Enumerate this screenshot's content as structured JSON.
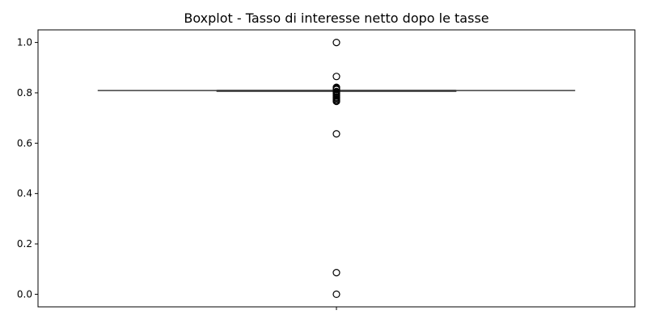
{
  "chart_data": {
    "type": "boxplot",
    "title": "Boxplot - Tasso di interesse netto dopo le tasse",
    "xlabel": "",
    "ylabel": "",
    "ylim": [
      -0.05,
      1.05
    ],
    "yticks": [
      0.0,
      0.2,
      0.4,
      0.6,
      0.8,
      1.0
    ],
    "ytick_labels": [
      "0.0",
      "0.2",
      "0.4",
      "0.6",
      "0.8",
      "1.0"
    ],
    "grid": false,
    "box": {
      "q1": 0.8088,
      "median": 0.809,
      "q3": 0.8092,
      "whisker_low": 0.8085,
      "whisker_high": 0.8095,
      "outliers": [
        1.0,
        0.865,
        0.822,
        0.819,
        0.816,
        0.813,
        0.805,
        0.802,
        0.798,
        0.793,
        0.788,
        0.783,
        0.779,
        0.774,
        0.77,
        0.766,
        0.637,
        0.086,
        0.0
      ]
    },
    "colors": {
      "line": "#3d3d3d",
      "box_fill": "#ffffff",
      "axis": "#000000"
    }
  }
}
